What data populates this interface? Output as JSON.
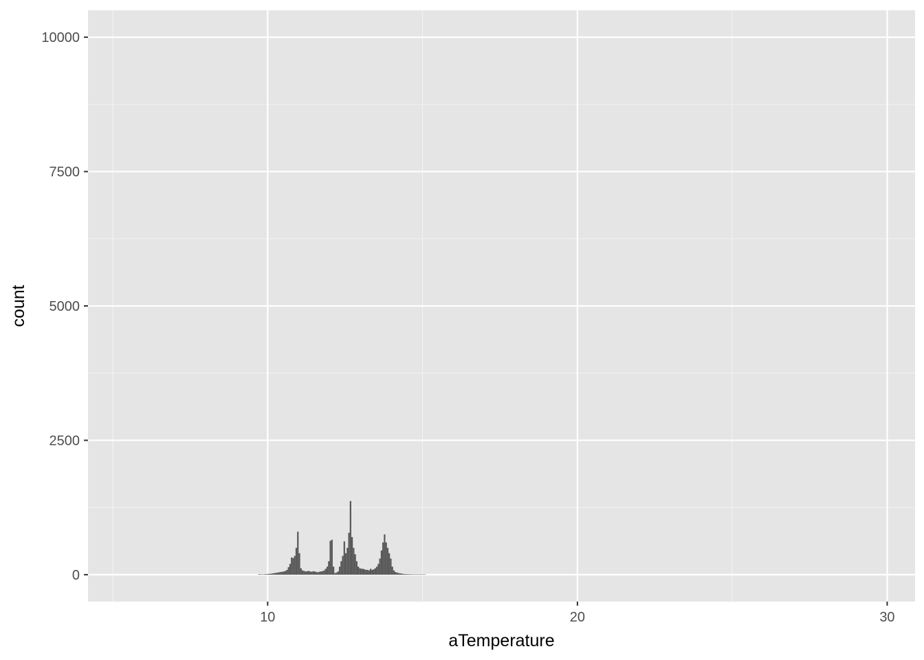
{
  "chart_data": {
    "type": "bar",
    "title": "",
    "xlabel": "aTemperature",
    "ylabel": "count",
    "xlim": [
      4.2,
      30.9
    ],
    "ylim": [
      -500,
      10500
    ],
    "x_ticks": [
      10,
      20,
      30
    ],
    "x_tick_labels": [
      "10",
      "20",
      "30"
    ],
    "y_ticks": [
      0,
      2500,
      5000,
      7500,
      10000
    ],
    "y_tick_labels": [
      "0",
      "2500",
      "5000",
      "7500",
      "10000"
    ],
    "grid": true,
    "legend": "none",
    "bin_width": 0.05,
    "bins_x": [
      9.7,
      9.75,
      9.8,
      9.85,
      9.9,
      9.95,
      10.0,
      10.05,
      10.1,
      10.15,
      10.2,
      10.25,
      10.3,
      10.35,
      10.4,
      10.45,
      10.5,
      10.55,
      10.6,
      10.65,
      10.7,
      10.75,
      10.8,
      10.85,
      10.9,
      10.95,
      11.0,
      11.05,
      11.1,
      11.15,
      11.2,
      11.25,
      11.3,
      11.35,
      11.4,
      11.45,
      11.5,
      11.55,
      11.6,
      11.65,
      11.7,
      11.75,
      11.8,
      11.85,
      11.9,
      11.95,
      12.0,
      12.05,
      12.1,
      12.15,
      12.2,
      12.25,
      12.3,
      12.35,
      12.4,
      12.45,
      12.5,
      12.55,
      12.6,
      12.65,
      12.7,
      12.75,
      12.8,
      12.85,
      12.9,
      12.95,
      13.0,
      13.05,
      13.1,
      13.15,
      13.2,
      13.25,
      13.3,
      13.35,
      13.4,
      13.45,
      13.5,
      13.55,
      13.6,
      13.65,
      13.7,
      13.75,
      13.8,
      13.85,
      13.9,
      13.95,
      14.0,
      14.05,
      14.1,
      14.15,
      14.2,
      14.25,
      14.3,
      14.35,
      14.4,
      14.45,
      14.5,
      14.55,
      14.6,
      14.65,
      14.7,
      14.75,
      14.8,
      14.85,
      14.9,
      14.95,
      15.0,
      15.05
    ],
    "values": [
      10,
      5,
      5,
      5,
      10,
      10,
      15,
      15,
      20,
      25,
      30,
      35,
      40,
      45,
      50,
      55,
      60,
      70,
      90,
      140,
      200,
      320,
      310,
      350,
      500,
      800,
      400,
      120,
      80,
      70,
      60,
      65,
      70,
      60,
      55,
      65,
      60,
      50,
      45,
      55,
      60,
      65,
      80,
      110,
      150,
      250,
      630,
      650,
      150,
      30,
      40,
      60,
      150,
      250,
      350,
      620,
      400,
      500,
      780,
      1370,
      700,
      500,
      380,
      250,
      150,
      120,
      110,
      110,
      100,
      90,
      90,
      80,
      110,
      90,
      100,
      120,
      150,
      200,
      300,
      450,
      600,
      750,
      600,
      500,
      400,
      300,
      150,
      80,
      50,
      40,
      30,
      25,
      20,
      15,
      12,
      10,
      10,
      8,
      8,
      6,
      6,
      5,
      5,
      5,
      5,
      5,
      5,
      5
    ]
  }
}
